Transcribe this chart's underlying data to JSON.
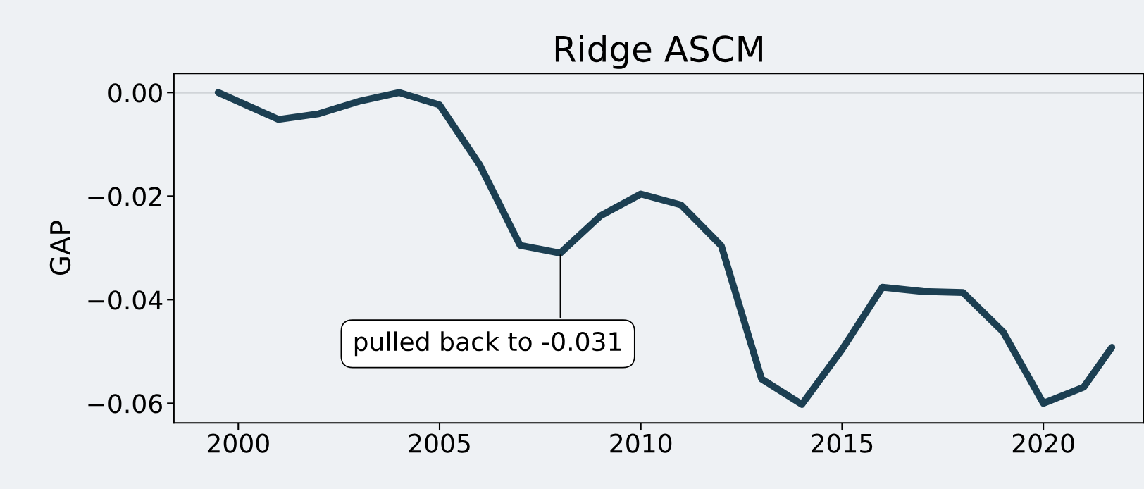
{
  "chart_data": {
    "type": "line",
    "title": "Ridge ASCM",
    "ylabel": "GAP",
    "x": [
      1999.5,
      2001,
      2002,
      2003,
      2004,
      2005,
      2006,
      2007,
      2008,
      2009,
      2010,
      2011,
      2012,
      2013,
      2014,
      2015,
      2016,
      2017,
      2018,
      2019,
      2020,
      2021,
      2021.7
    ],
    "series": [
      {
        "color": "#1c3f52",
        "values": [
          0.0,
          -0.0052,
          -0.0041,
          -0.0017,
          0.0,
          -0.0024,
          -0.014,
          -0.0295,
          -0.031,
          -0.0238,
          -0.0196,
          -0.0217,
          -0.0296,
          -0.0553,
          -0.0602,
          -0.0496,
          -0.0376,
          -0.0384,
          -0.0386,
          -0.0462,
          -0.06,
          -0.0569,
          -0.0492
        ]
      }
    ],
    "xlim": [
      1998.4,
      2022.5
    ],
    "xticks": [
      2000,
      2005,
      2010,
      2015,
      2020
    ],
    "ylim": [
      -0.0638,
      0.0037
    ],
    "yticks": [
      {
        "value": 0,
        "label": "0.00"
      },
      {
        "value": -0.02,
        "label": "−0.02"
      },
      {
        "value": -0.04,
        "label": "−0.04"
      },
      {
        "value": -0.06,
        "label": "−0.06"
      }
    ],
    "ref_lines": [
      {
        "axis": "y",
        "value": 0,
        "color": "#d0d4d8"
      }
    ],
    "annotations": [
      {
        "text": "pulled back to -0.031",
        "x": 2008,
        "y": -0.031
      }
    ],
    "grid": false,
    "legend": false,
    "marker": "none",
    "line_style": "solid"
  }
}
